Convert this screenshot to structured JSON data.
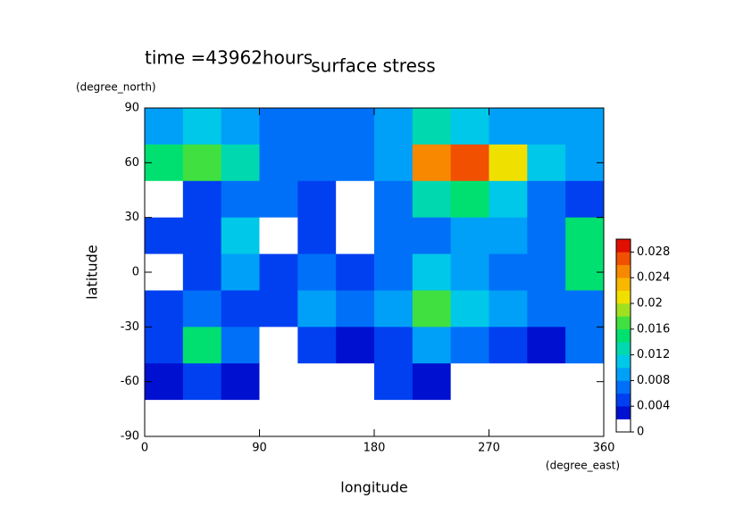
{
  "chart_data": {
    "type": "contour",
    "subtitle": "time =43962hours",
    "title": "surface stress",
    "x_label": "longitude",
    "x_unit": "(degree_east)",
    "y_label": "latitude",
    "y_unit": "(degree_north)",
    "x": [
      15,
      45,
      75,
      105,
      135,
      165,
      195,
      225,
      255,
      285,
      315,
      345
    ],
    "y": [
      80,
      60,
      40,
      20,
      0,
      -20,
      -40,
      -60,
      -80
    ],
    "z": [
      [
        0.008,
        0.01,
        0.008,
        0.006,
        0.006,
        0.006,
        0.008,
        0.012,
        0.01,
        0.008,
        0.008,
        0.008
      ],
      [
        0.014,
        0.016,
        0.012,
        0.006,
        0.006,
        0.006,
        0.008,
        0.024,
        0.026,
        0.02,
        0.01,
        0.008
      ],
      [
        0,
        0.004,
        0.006,
        0.006,
        0.004,
        0,
        0.006,
        0.012,
        0.014,
        0.01,
        0.006,
        0.004
      ],
      [
        0.004,
        0.004,
        0.01,
        0,
        0.004,
        0,
        0.006,
        0.006,
        0.008,
        0.008,
        0.006,
        0.014
      ],
      [
        0,
        0.004,
        0.008,
        0.004,
        0.006,
        0.004,
        0.006,
        0.01,
        0.008,
        0.006,
        0.006,
        0.014
      ],
      [
        0.004,
        0.006,
        0.004,
        0.004,
        0.008,
        0.006,
        0.008,
        0.016,
        0.01,
        0.008,
        0.006,
        0.006
      ],
      [
        0.004,
        0.014,
        0.006,
        0,
        0.004,
        0.002,
        0.004,
        0.008,
        0.006,
        0.004,
        0.002,
        0.006
      ],
      [
        0.002,
        0.004,
        0.002,
        0,
        0,
        0,
        0.004,
        0.002,
        0,
        0,
        0,
        0
      ],
      [
        0,
        0,
        0,
        0,
        0,
        0,
        0,
        0,
        0,
        0,
        0,
        0
      ]
    ],
    "xlim": [
      0,
      360
    ],
    "ylim": [
      -90,
      90
    ],
    "xticks": [
      0,
      90,
      180,
      270,
      360
    ],
    "yticks": [
      -90,
      -60,
      -30,
      0,
      30,
      60,
      90
    ],
    "colorbar": {
      "levels": [
        0,
        0.002,
        0.004,
        0.006,
        0.008,
        0.01,
        0.012,
        0.014,
        0.016,
        0.018,
        0.02,
        0.022,
        0.024,
        0.026,
        0.028,
        0.03
      ],
      "colors": [
        "#ffffff",
        "#0010d0",
        "#0040f0",
        "#0070f8",
        "#00a0f8",
        "#00c8e8",
        "#00d8b0",
        "#00e070",
        "#40e040",
        "#a0e020",
        "#f0e000",
        "#f8b800",
        "#f88800",
        "#f05000",
        "#e01000"
      ],
      "ticks": [
        0,
        0.004,
        0.008,
        0.012,
        0.016,
        0.02,
        0.024,
        0.028
      ]
    }
  }
}
